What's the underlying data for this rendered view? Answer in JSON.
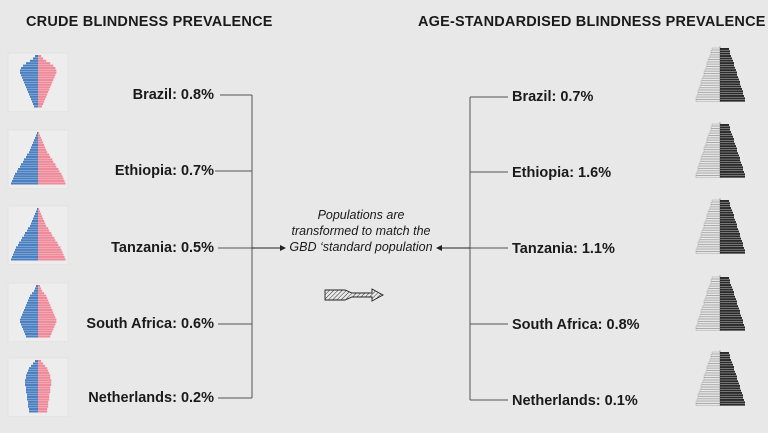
{
  "headings": {
    "left": "CRUDE BLINDNESS PREVALENCE",
    "right": "AGE-STANDARDISED BLINDNESS PREVALENCE"
  },
  "crude": [
    {
      "country": "Brazil",
      "value": "0.8%",
      "label": "Brazil: 0.8%"
    },
    {
      "country": "Ethiopia",
      "value": "0.7%",
      "label": "Ethiopia: 0.7%"
    },
    {
      "country": "Tanzania",
      "value": "0.5%",
      "label": "Tanzania: 0.5%"
    },
    {
      "country": "South Africa",
      "value": "0.6%",
      "label": "South Africa: 0.6%"
    },
    {
      "country": "Netherlands",
      "value": "0.2%",
      "label": "Netherlands: 0.2%"
    }
  ],
  "standardised": [
    {
      "country": "Brazil",
      "value": "0.7%",
      "label": "Brazil: 0.7%"
    },
    {
      "country": "Ethiopia",
      "value": "1.6%",
      "label": "Ethiopia: 1.6%"
    },
    {
      "country": "Tanzania",
      "value": "1.1%",
      "label": "Tanzania: 1.1%"
    },
    {
      "country": "South Africa",
      "value": "0.8%",
      "label": "South Africa: 0.8%"
    },
    {
      "country": "Netherlands",
      "value": "0.1%",
      "label": "Netherlands: 0.1%"
    }
  ],
  "center_note": "Populations are transformed to match the GBD ‘standard population",
  "colors": {
    "male": "#4a7fc1",
    "female": "#f08a9a",
    "standard": "#2a2a2a",
    "line": "#555555"
  }
}
